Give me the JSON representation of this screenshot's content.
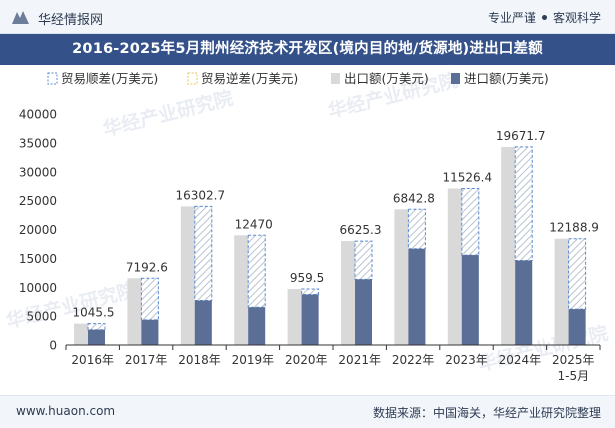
{
  "header": {
    "brand": "华经情报网",
    "slogan_left": "专业严谨",
    "slogan_right": "客观科学"
  },
  "title": "2016-2025年5月荆州经济技术开发区(境内目的地/货源地)进出口差额",
  "footer": {
    "site": "www.huaon.com",
    "source": "数据来源：中国海关，华经产业研究院整理"
  },
  "watermark": "华经产业研究院",
  "colors": {
    "export_bar": "#d9d9d9",
    "import_bar": "#5b6e96",
    "surplus_border": "#5b8bd0",
    "deficit_border": "#e8c65b",
    "title_bg": "#34518a"
  },
  "chart_data": {
    "type": "bar",
    "categories": [
      "2016年",
      "2017年",
      "2018年",
      "2019年",
      "2020年",
      "2021年",
      "2022年",
      "2023年",
      "2024年",
      "2025年\n1-5月"
    ],
    "series": [
      {
        "name": "贸易顺差(万美元)",
        "values": [
          1045.5,
          7192.6,
          16302.7,
          12470,
          959.5,
          6625.3,
          6842.8,
          11526.4,
          19671.7,
          12188.9
        ]
      },
      {
        "name": "贸易逆差(万美元)",
        "values": [
          0,
          0,
          0,
          0,
          0,
          0,
          0,
          0,
          0,
          0
        ]
      },
      {
        "name": "出口额(万美元)",
        "values": [
          3700,
          11550,
          24000,
          19000,
          9700,
          18000,
          23500,
          27100,
          34300,
          18400
        ]
      },
      {
        "name": "进口额(万美元)",
        "values": [
          2650,
          4360,
          7700,
          6530,
          8740,
          11370,
          16660,
          15570,
          14630,
          6210
        ]
      }
    ],
    "data_labels": [
      "1045.5",
      "7192.6",
      "16302.7",
      "12470",
      "959.5",
      "6625.3",
      "6842.8",
      "11526.4",
      "19671.7",
      "12188.9"
    ],
    "ylim": [
      0,
      40000
    ],
    "yticks": [
      0,
      5000,
      10000,
      15000,
      20000,
      25000,
      30000,
      35000,
      40000
    ],
    "ytick_labels": [
      "0",
      "5000",
      "10000",
      "15000",
      "20000",
      "25000",
      "30000",
      "35000",
      "40000"
    ],
    "legend_position": "top",
    "grid": false
  }
}
